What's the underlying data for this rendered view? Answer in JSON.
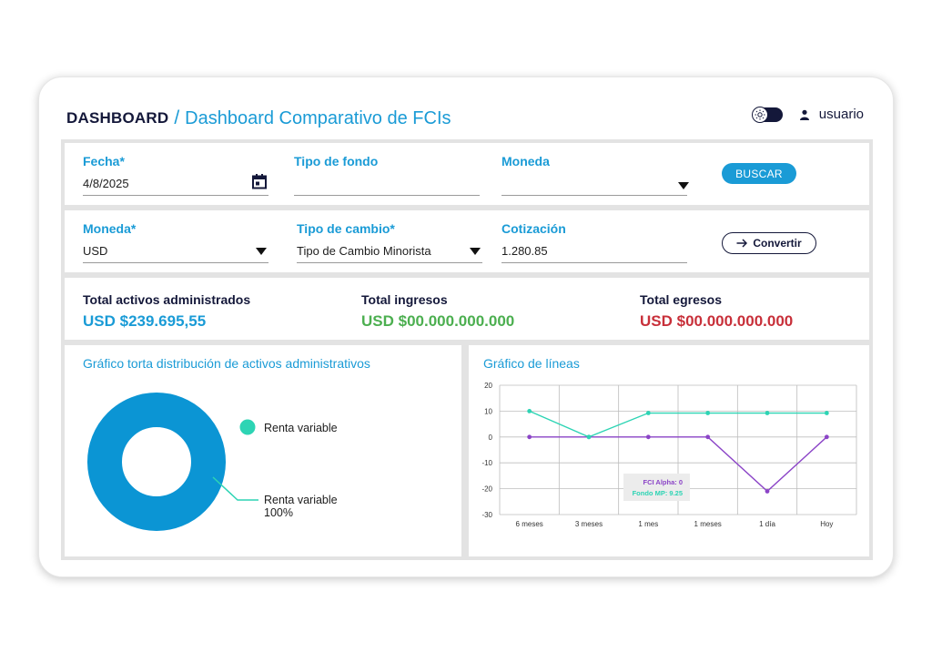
{
  "header": {
    "breadcrumb_root": "DASHBOARD",
    "breadcrumb_sep": "/",
    "page_title": "Dashboard Comparativo de FCIs",
    "user_label": "usuario"
  },
  "filters": {
    "fecha_label": "Fecha*",
    "fecha_value": "4/8/2025",
    "tipo_fondo_label": "Tipo de fondo",
    "tipo_fondo_value": "",
    "moneda_label": "Moneda",
    "moneda_value": "",
    "buscar_label": "BUSCAR"
  },
  "converter": {
    "moneda_label": "Moneda*",
    "moneda_value": "USD",
    "tipo_cambio_label": "Tipo de cambio*",
    "tipo_cambio_value": "Tipo de Cambio Minorista",
    "cotizacion_label": "Cotización",
    "cotizacion_value": "1.280.85",
    "convertir_label": "Convertir"
  },
  "stats": {
    "activos_label": "Total activos administrados",
    "activos_value": "USD $239.695,55",
    "ingresos_label": "Total ingresos",
    "ingresos_value": "USD $00.000.000.000",
    "egresos_label": "Total egresos",
    "egresos_value": "USD $00.000.000.000"
  },
  "colors": {
    "accent": "#1a9bd6",
    "navy": "#14183a",
    "green": "#4caf50",
    "red": "#c8303a",
    "teal": "#2dd4b4",
    "purple": "#8b44c7"
  },
  "icons": {
    "calendar": "calendar-icon",
    "dropdown": "triangle-down-icon",
    "theme": "sun-icon",
    "user": "user-icon",
    "arrow": "arrow-right-icon"
  },
  "chart_data": [
    {
      "type": "pie",
      "title": "Gráfico torta distribución de activos administrativos",
      "labels": [
        "Renta variable"
      ],
      "values": [
        100
      ],
      "legend_label": "Renta variable",
      "slice_label": "Renta variable",
      "slice_percent": "100%",
      "legend": "right"
    },
    {
      "type": "line",
      "title": "Gráfico de líneas",
      "categories": [
        "6 meses",
        "3 meses",
        "1 mes",
        "1 meses",
        "1 día",
        "Hoy"
      ],
      "ylim": [
        -30,
        20
      ],
      "yticks": [
        "20",
        "10",
        "0",
        "-10",
        "-20",
        "-30"
      ],
      "grid": true,
      "series": [
        {
          "name": "FCI Alpha",
          "color": "#8b44c7",
          "values": [
            0,
            0,
            0,
            0,
            -21,
            0
          ]
        },
        {
          "name": "Fondo MP",
          "color": "#2dd4b4",
          "values": [
            10,
            0,
            9.25,
            9.25,
            9.25,
            9.25
          ]
        }
      ],
      "tooltip": {
        "line1": "FCI Alpha: 0",
        "line2": "Fondo MP: 9.25"
      }
    }
  ]
}
